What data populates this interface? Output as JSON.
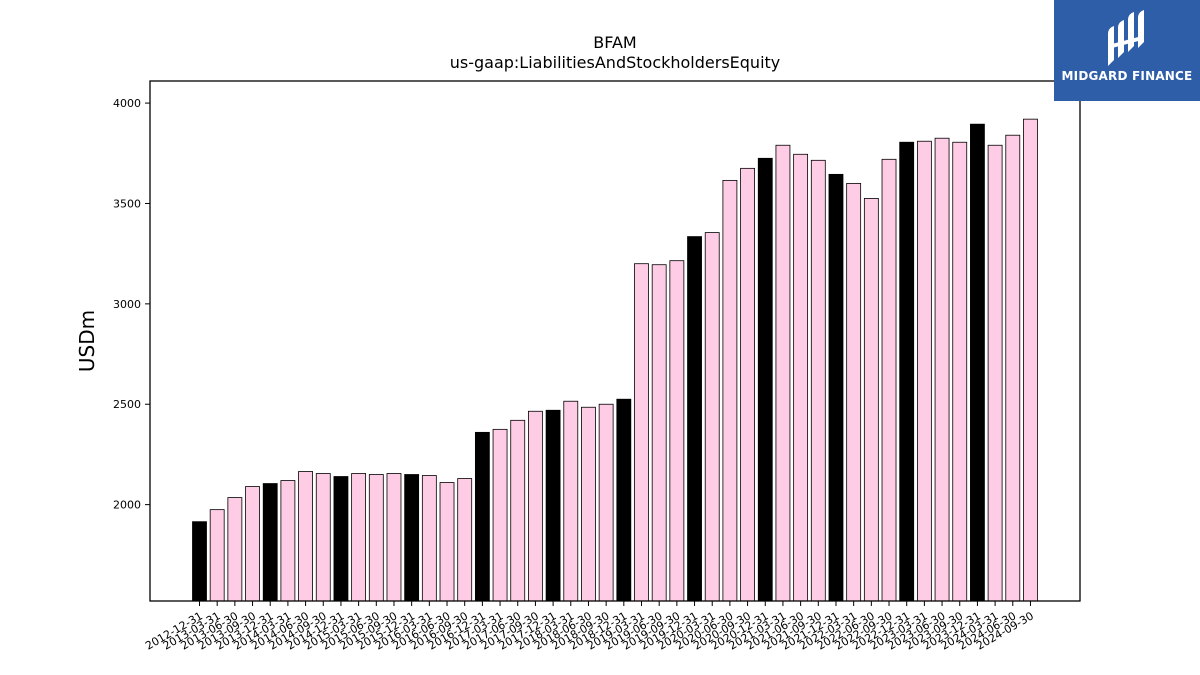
{
  "logo": {
    "text": "MIDGARD FINANCE",
    "background": "#2f5ea9"
  },
  "chart_data": {
    "type": "bar",
    "title": "BFAM",
    "subtitle": "us-gaap:LiabilitiesAndStockholdersEquity",
    "xlabel": "",
    "ylabel": "USDm",
    "ylim": [
      1520,
      4110
    ],
    "yticks": [
      2000,
      2500,
      3000,
      3500,
      4000
    ],
    "grid": false,
    "colors": {
      "annual": "#000000",
      "quarterly": "#ffcce6",
      "edge": "#000000"
    },
    "categories": [
      "2012-12-31",
      "2013-03-31",
      "2013-06-30",
      "2013-09-30",
      "2013-12-31",
      "2014-03-31",
      "2014-06-30",
      "2014-09-30",
      "2014-12-31",
      "2015-03-31",
      "2015-06-30",
      "2015-09-30",
      "2015-12-31",
      "2016-03-31",
      "2016-06-30",
      "2016-09-30",
      "2016-12-31",
      "2017-03-31",
      "2017-06-30",
      "2017-09-30",
      "2017-12-31",
      "2018-03-31",
      "2018-06-30",
      "2018-09-30",
      "2018-12-31",
      "2019-03-31",
      "2019-06-30",
      "2019-09-30",
      "2019-12-31",
      "2020-03-31",
      "2020-06-30",
      "2020-09-30",
      "2020-12-31",
      "2021-03-31",
      "2021-06-30",
      "2021-09-30",
      "2021-12-31",
      "2022-03-31",
      "2022-06-30",
      "2022-09-30",
      "2022-12-31",
      "2023-03-31",
      "2023-06-30",
      "2023-09-30",
      "2023-12-31",
      "2024-03-31",
      "2024-06-30",
      "2024-09-30"
    ],
    "values": [
      1915,
      1975,
      2035,
      2090,
      2105,
      2120,
      2165,
      2155,
      2140,
      2155,
      2150,
      2155,
      2150,
      2145,
      2110,
      2130,
      2360,
      2375,
      2420,
      2465,
      2470,
      2515,
      2485,
      2500,
      2525,
      3200,
      3195,
      3215,
      3335,
      3355,
      3615,
      3675,
      3725,
      3790,
      3745,
      3715,
      3645,
      3600,
      3525,
      3720,
      3805,
      3810,
      3825,
      3805,
      3895,
      3790,
      3840,
      3920
    ],
    "annual": [
      true,
      false,
      false,
      false,
      true,
      false,
      false,
      false,
      true,
      false,
      false,
      false,
      true,
      false,
      false,
      false,
      true,
      false,
      false,
      false,
      true,
      false,
      false,
      false,
      true,
      false,
      false,
      false,
      true,
      false,
      false,
      false,
      true,
      false,
      false,
      false,
      true,
      false,
      false,
      false,
      true,
      false,
      false,
      false,
      true,
      false,
      false,
      false
    ]
  }
}
